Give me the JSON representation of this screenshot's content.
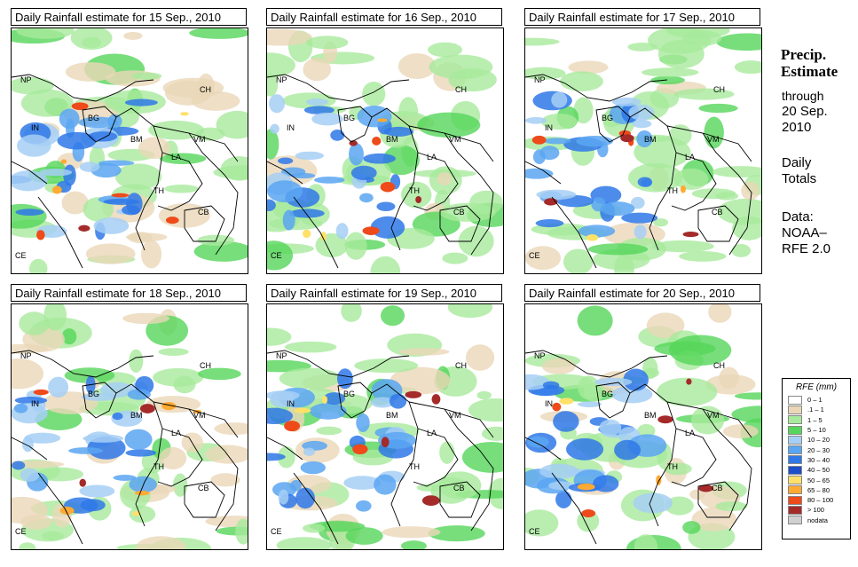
{
  "panels": [
    {
      "title": "Daily Rainfall estimate for  15 Sep., 2010"
    },
    {
      "title": "Daily Rainfall estimate for  16 Sep., 2010"
    },
    {
      "title": "Daily Rainfall estimate for  17 Sep., 2010"
    },
    {
      "title": "Daily Rainfall estimate for  18 Sep., 2010"
    },
    {
      "title": "Daily Rainfall estimate for  19 Sep., 2010"
    },
    {
      "title": "Daily Rainfall estimate for  20 Sep., 2010"
    }
  ],
  "country_labels": {
    "np": "NP",
    "in": "IN",
    "bg": "BG",
    "ch": "CH",
    "bm": "BM",
    "vm": "VM",
    "la": "LA",
    "th": "TH",
    "cb": "CB",
    "ce": "CE"
  },
  "side": {
    "title_line1": "Precip.",
    "title_line2": "Estimate",
    "through": "through",
    "date_line1": "20 Sep.",
    "date_line2": "2010",
    "daily1": "Daily",
    "daily2": "Totals",
    "data1": "Data:",
    "data2": "NOAA–",
    "data3": "RFE 2.0"
  },
  "legend": {
    "title": "RFE (mm)",
    "items": [
      {
        "label": "0 – 1",
        "color": "#ffffff"
      },
      {
        "label": ".1 – 1",
        "color": "#ead7b8"
      },
      {
        "label": "1 – 5",
        "color": "#a8ea9c"
      },
      {
        "label": "5 – 10",
        "color": "#55d65a"
      },
      {
        "label": "10 – 20",
        "color": "#a6cff5"
      },
      {
        "label": "20 – 30",
        "color": "#5aa6f2"
      },
      {
        "label": "30 – 40",
        "color": "#2f78e8"
      },
      {
        "label": "40 – 50",
        "color": "#1c4fc9"
      },
      {
        "label": "50 – 65",
        "color": "#ffe16a"
      },
      {
        "label": "65 – 80",
        "color": "#ffaa33"
      },
      {
        "label": "80 – 100",
        "color": "#ee4a1a"
      },
      {
        "label": "> 100",
        "color": "#a52a2a"
      },
      {
        "label": "nodata",
        "color": "#d0d0d0"
      }
    ]
  }
}
